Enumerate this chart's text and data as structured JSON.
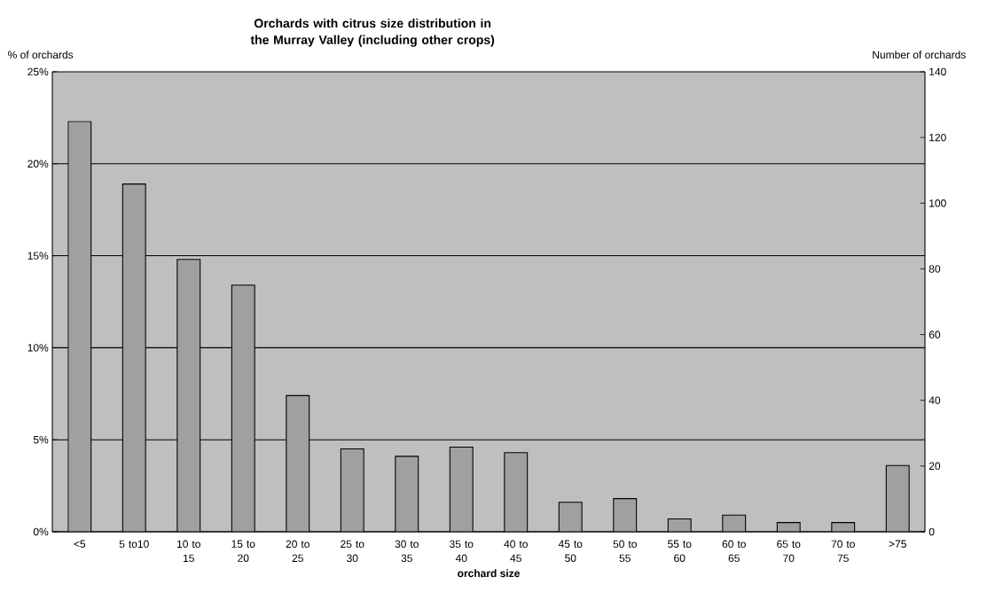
{
  "chart_data": {
    "type": "bar",
    "title": "Orchards with citrus size distribution in the Murray Valley (including other crops)",
    "xlabel": "orchard size",
    "ylabel": "% of orchards",
    "y2label": "Number of orchards",
    "categories": [
      "<5",
      "5 to10",
      "10 to 15",
      "15 to 20",
      "20 to 25",
      "25 to 30",
      "30 to 35",
      "35 to 40",
      "40 to 45",
      "45 to 50",
      "50 to 55",
      "55 to 60",
      "60 to 65",
      "65 to 70",
      "70 to 75",
      ">75"
    ],
    "values": [
      22.3,
      18.9,
      14.8,
      13.4,
      7.4,
      4.5,
      4.1,
      4.6,
      4.3,
      1.6,
      1.8,
      0.7,
      0.9,
      0.5,
      0.5,
      3.6
    ],
    "color": "#a0a0a0",
    "ylim": [
      0,
      25
    ],
    "yticks": [
      {
        "value": 0,
        "label": "0%"
      },
      {
        "value": 5,
        "label": "5%"
      },
      {
        "value": 10,
        "label": "10%"
      },
      {
        "value": 15,
        "label": "15%"
      },
      {
        "value": 20,
        "label": "20%"
      },
      {
        "value": 25,
        "label": "25%"
      }
    ],
    "y2lim": [
      0,
      140
    ],
    "y2ticks": [
      0,
      20,
      40,
      60,
      80,
      100,
      120,
      140
    ],
    "grid": "y"
  }
}
